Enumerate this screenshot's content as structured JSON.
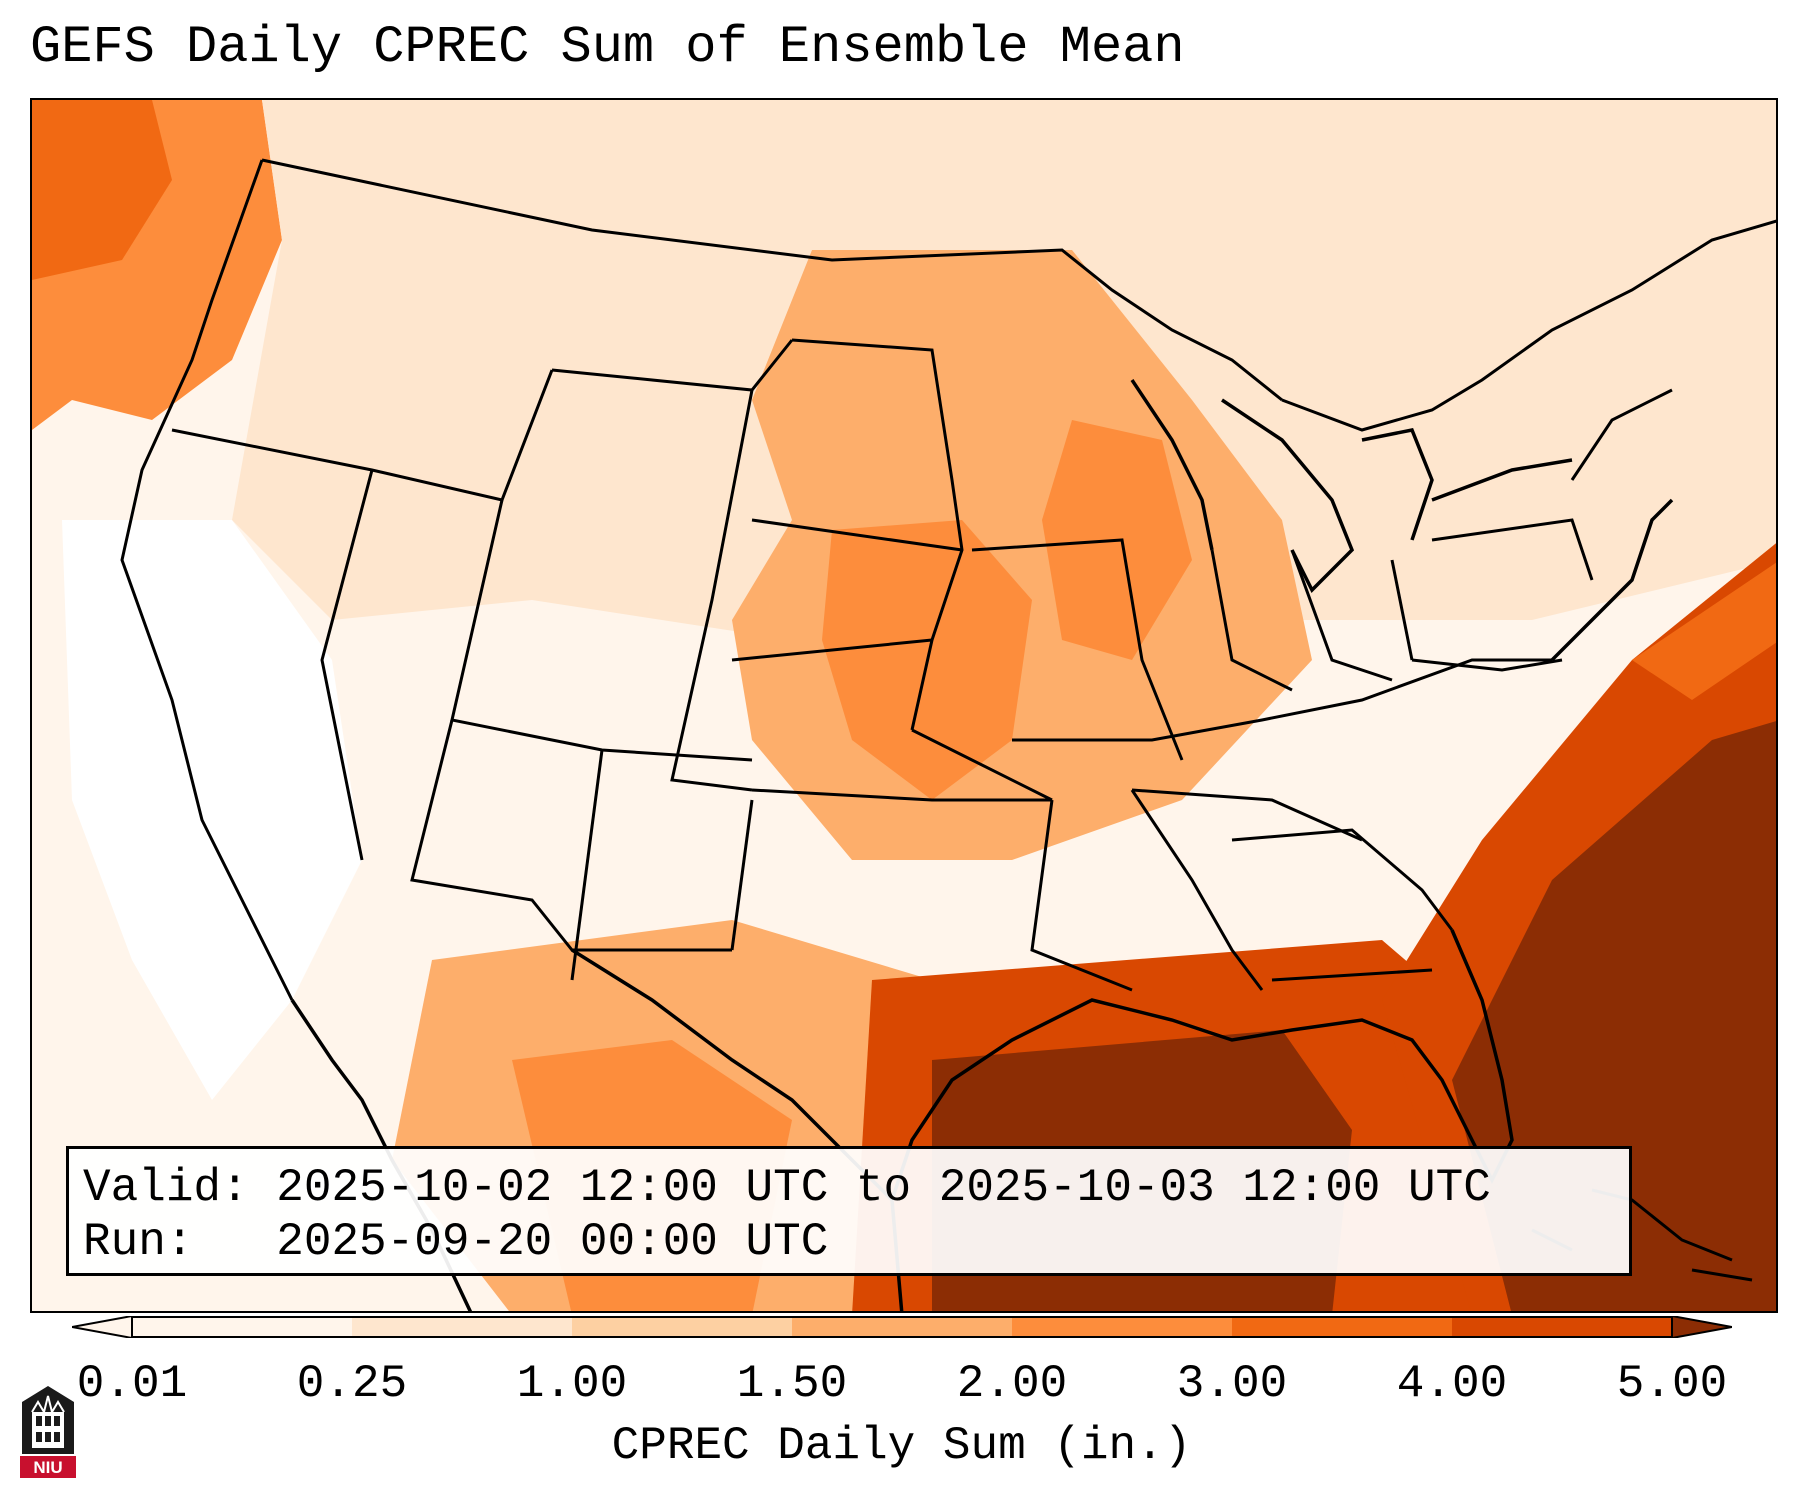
{
  "title": "GEFS Daily CPREC Sum of Ensemble Mean",
  "info": {
    "valid_line": "Valid: 2025-10-02 12:00 UTC to 2025-10-03 12:00 UTC",
    "run_line": "Run:   2025-09-20 00:00 UTC"
  },
  "colorbar": {
    "label": "CPREC Daily Sum (in.)",
    "ticks": [
      "0.01",
      "0.25",
      "1.00",
      "1.50",
      "2.00",
      "3.00",
      "4.00",
      "5.00"
    ],
    "colors": [
      "#fff5eb",
      "#fee6ce",
      "#fdd0a2",
      "#fdae6b",
      "#fd8d3c",
      "#f16913",
      "#d94801",
      "#8c2d04"
    ]
  },
  "logo": {
    "text": "NIU",
    "icon": "university-tower-icon",
    "colors": {
      "shield": "#1a1a1a",
      "banner": "#c8102e"
    }
  }
}
